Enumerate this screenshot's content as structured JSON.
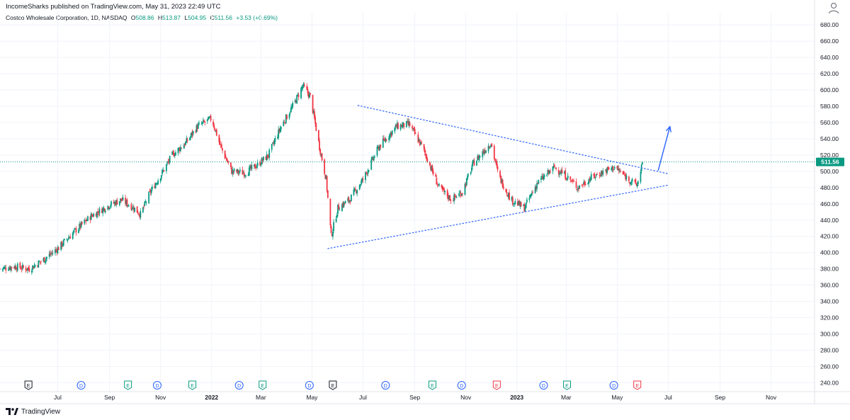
{
  "header": {
    "publisher_line": "IncomeSharks published on TradingView.com, May 31, 2023 22:49 UTC"
  },
  "legend": {
    "symbol": "Costco Wholesale Corporation, 1D, NASDAQ",
    "open_label": "O",
    "open": "508.86",
    "high_label": "H",
    "high": "513.87",
    "low_label": "L",
    "low": "504.95",
    "close_label": "C",
    "close": "511.56",
    "change": "+3.53 (+0.69%)"
  },
  "footer": {
    "brand": "TradingView"
  },
  "colors": {
    "up": "#089981",
    "down": "#f23645",
    "trend": "#2962ff",
    "price_line": "#089981",
    "grid": "#f0f3fa",
    "text": "#131722"
  },
  "chart_data": {
    "type": "candlestick",
    "title": "Costco Wholesale Corporation, 1D, NASDAQ",
    "y_ticks": [
      "240.00",
      "260.00",
      "280.00",
      "300.00",
      "320.00",
      "340.00",
      "360.00",
      "380.00",
      "400.00",
      "420.00",
      "440.00",
      "460.00",
      "480.00",
      "500.00",
      "520.00",
      "540.00",
      "560.00",
      "580.00",
      "600.00",
      "620.00",
      "640.00",
      "660.00",
      "680.00"
    ],
    "ylim": [
      229,
      695
    ],
    "x_ticks": [
      {
        "label": "Jul",
        "date": "2021-07-01",
        "bold": false
      },
      {
        "label": "Sep",
        "date": "2021-09-01",
        "bold": false
      },
      {
        "label": "Nov",
        "date": "2021-11-01",
        "bold": false
      },
      {
        "label": "2022",
        "date": "2022-01-01",
        "bold": true
      },
      {
        "label": "Mar",
        "date": "2022-03-01",
        "bold": false
      },
      {
        "label": "May",
        "date": "2022-05-01",
        "bold": false
      },
      {
        "label": "Jul",
        "date": "2022-07-01",
        "bold": false
      },
      {
        "label": "Sep",
        "date": "2022-09-01",
        "bold": false
      },
      {
        "label": "Nov",
        "date": "2022-11-01",
        "bold": false
      },
      {
        "label": "2023",
        "date": "2023-01-01",
        "bold": true
      },
      {
        "label": "Mar",
        "date": "2023-03-01",
        "bold": false
      },
      {
        "label": "May",
        "date": "2023-05-01",
        "bold": false
      },
      {
        "label": "Jul",
        "date": "2023-07-01",
        "bold": false
      },
      {
        "label": "Sep",
        "date": "2023-09-01",
        "bold": false
      },
      {
        "label": "Nov",
        "date": "2023-11-01",
        "bold": false
      }
    ],
    "xlim": [
      "2021-04-23",
      "2023-12-23"
    ],
    "last_price": {
      "value": 511.56,
      "label": "511.56"
    },
    "close_path": [
      {
        "date": "2021-04-23",
        "close": 380
      },
      {
        "date": "2021-05-10",
        "close": 383
      },
      {
        "date": "2021-05-28",
        "close": 380
      },
      {
        "date": "2021-06-15",
        "close": 392
      },
      {
        "date": "2021-07-01",
        "close": 405
      },
      {
        "date": "2021-07-20",
        "close": 425
      },
      {
        "date": "2021-08-10",
        "close": 445
      },
      {
        "date": "2021-08-31",
        "close": 458
      },
      {
        "date": "2021-09-15",
        "close": 465
      },
      {
        "date": "2021-09-30",
        "close": 455
      },
      {
        "date": "2021-10-08",
        "close": 447
      },
      {
        "date": "2021-10-20",
        "close": 475
      },
      {
        "date": "2021-11-01",
        "close": 495
      },
      {
        "date": "2021-11-15",
        "close": 520
      },
      {
        "date": "2021-12-01",
        "close": 535
      },
      {
        "date": "2021-12-15",
        "close": 555
      },
      {
        "date": "2022-01-01",
        "close": 565
      },
      {
        "date": "2022-01-12",
        "close": 530
      },
      {
        "date": "2022-01-25",
        "close": 500
      },
      {
        "date": "2022-02-10",
        "close": 498
      },
      {
        "date": "2022-02-25",
        "close": 508
      },
      {
        "date": "2022-03-10",
        "close": 520
      },
      {
        "date": "2022-03-25",
        "close": 555
      },
      {
        "date": "2022-04-08",
        "close": 580
      },
      {
        "date": "2022-04-20",
        "close": 605
      },
      {
        "date": "2022-04-29",
        "close": 592
      },
      {
        "date": "2022-05-10",
        "close": 530
      },
      {
        "date": "2022-05-18",
        "close": 490
      },
      {
        "date": "2022-05-24",
        "close": 420
      },
      {
        "date": "2022-06-01",
        "close": 455
      },
      {
        "date": "2022-06-15",
        "close": 465
      },
      {
        "date": "2022-07-01",
        "close": 490
      },
      {
        "date": "2022-07-20",
        "close": 530
      },
      {
        "date": "2022-08-10",
        "close": 555
      },
      {
        "date": "2022-08-25",
        "close": 558
      },
      {
        "date": "2022-09-10",
        "close": 530
      },
      {
        "date": "2022-09-30",
        "close": 480
      },
      {
        "date": "2022-10-15",
        "close": 465
      },
      {
        "date": "2022-10-28",
        "close": 475
      },
      {
        "date": "2022-11-10",
        "close": 510
      },
      {
        "date": "2022-12-01",
        "close": 535
      },
      {
        "date": "2022-12-10",
        "close": 495
      },
      {
        "date": "2022-12-25",
        "close": 465
      },
      {
        "date": "2023-01-10",
        "close": 455
      },
      {
        "date": "2023-01-25",
        "close": 485
      },
      {
        "date": "2023-02-15",
        "close": 505
      },
      {
        "date": "2023-02-28",
        "close": 495
      },
      {
        "date": "2023-03-15",
        "close": 480
      },
      {
        "date": "2023-03-31",
        "close": 492
      },
      {
        "date": "2023-04-15",
        "close": 500
      },
      {
        "date": "2023-04-28",
        "close": 505
      },
      {
        "date": "2023-05-15",
        "close": 490
      },
      {
        "date": "2023-05-25",
        "close": 483
      },
      {
        "date": "2023-05-31",
        "close": 511.56
      }
    ],
    "trendlines": [
      {
        "name": "upper",
        "from": {
          "date": "2022-06-25",
          "price": 581
        },
        "to": {
          "date": "2023-07-01",
          "price": 497
        }
      },
      {
        "name": "lower",
        "from": {
          "date": "2022-05-20",
          "price": 405
        },
        "to": {
          "date": "2023-07-01",
          "price": 483
        }
      }
    ],
    "arrow": {
      "from": {
        "date": "2023-06-19",
        "price": 501
      },
      "to": {
        "date": "2023-07-03",
        "price": 555
      }
    },
    "events": [
      {
        "type": "E",
        "kind": "earnings",
        "date": "2021-05-27",
        "color": "#131722"
      },
      {
        "type": "D",
        "kind": "dividend",
        "date": "2021-07-29",
        "color": "#2962ff"
      },
      {
        "type": "E",
        "kind": "earnings",
        "date": "2021-09-23",
        "color": "#089981"
      },
      {
        "type": "D",
        "kind": "dividend",
        "date": "2021-10-28",
        "color": "#2962ff"
      },
      {
        "type": "E",
        "kind": "earnings",
        "date": "2021-12-09",
        "color": "#089981"
      },
      {
        "type": "D",
        "kind": "dividend",
        "date": "2022-02-03",
        "color": "#2962ff"
      },
      {
        "type": "E",
        "kind": "earnings",
        "date": "2022-03-03",
        "color": "#089981"
      },
      {
        "type": "D",
        "kind": "dividend",
        "date": "2022-04-28",
        "color": "#2962ff"
      },
      {
        "type": "E",
        "kind": "earnings",
        "date": "2022-05-26",
        "color": "#131722"
      },
      {
        "type": "D",
        "kind": "dividend",
        "date": "2022-07-28",
        "color": "#2962ff"
      },
      {
        "type": "E",
        "kind": "earnings",
        "date": "2022-09-22",
        "color": "#089981"
      },
      {
        "type": "D",
        "kind": "dividend",
        "date": "2022-10-27",
        "color": "#2962ff"
      },
      {
        "type": "E",
        "kind": "earnings",
        "date": "2022-12-08",
        "color": "#f23645"
      },
      {
        "type": "D",
        "kind": "dividend",
        "date": "2023-02-02",
        "color": "#2962ff"
      },
      {
        "type": "E",
        "kind": "earnings",
        "date": "2023-03-02",
        "color": "#089981"
      },
      {
        "type": "D",
        "kind": "dividend",
        "date": "2023-04-27",
        "color": "#2962ff"
      },
      {
        "type": "E",
        "kind": "earnings",
        "date": "2023-05-25",
        "color": "#f23645"
      }
    ],
    "grid": true
  }
}
